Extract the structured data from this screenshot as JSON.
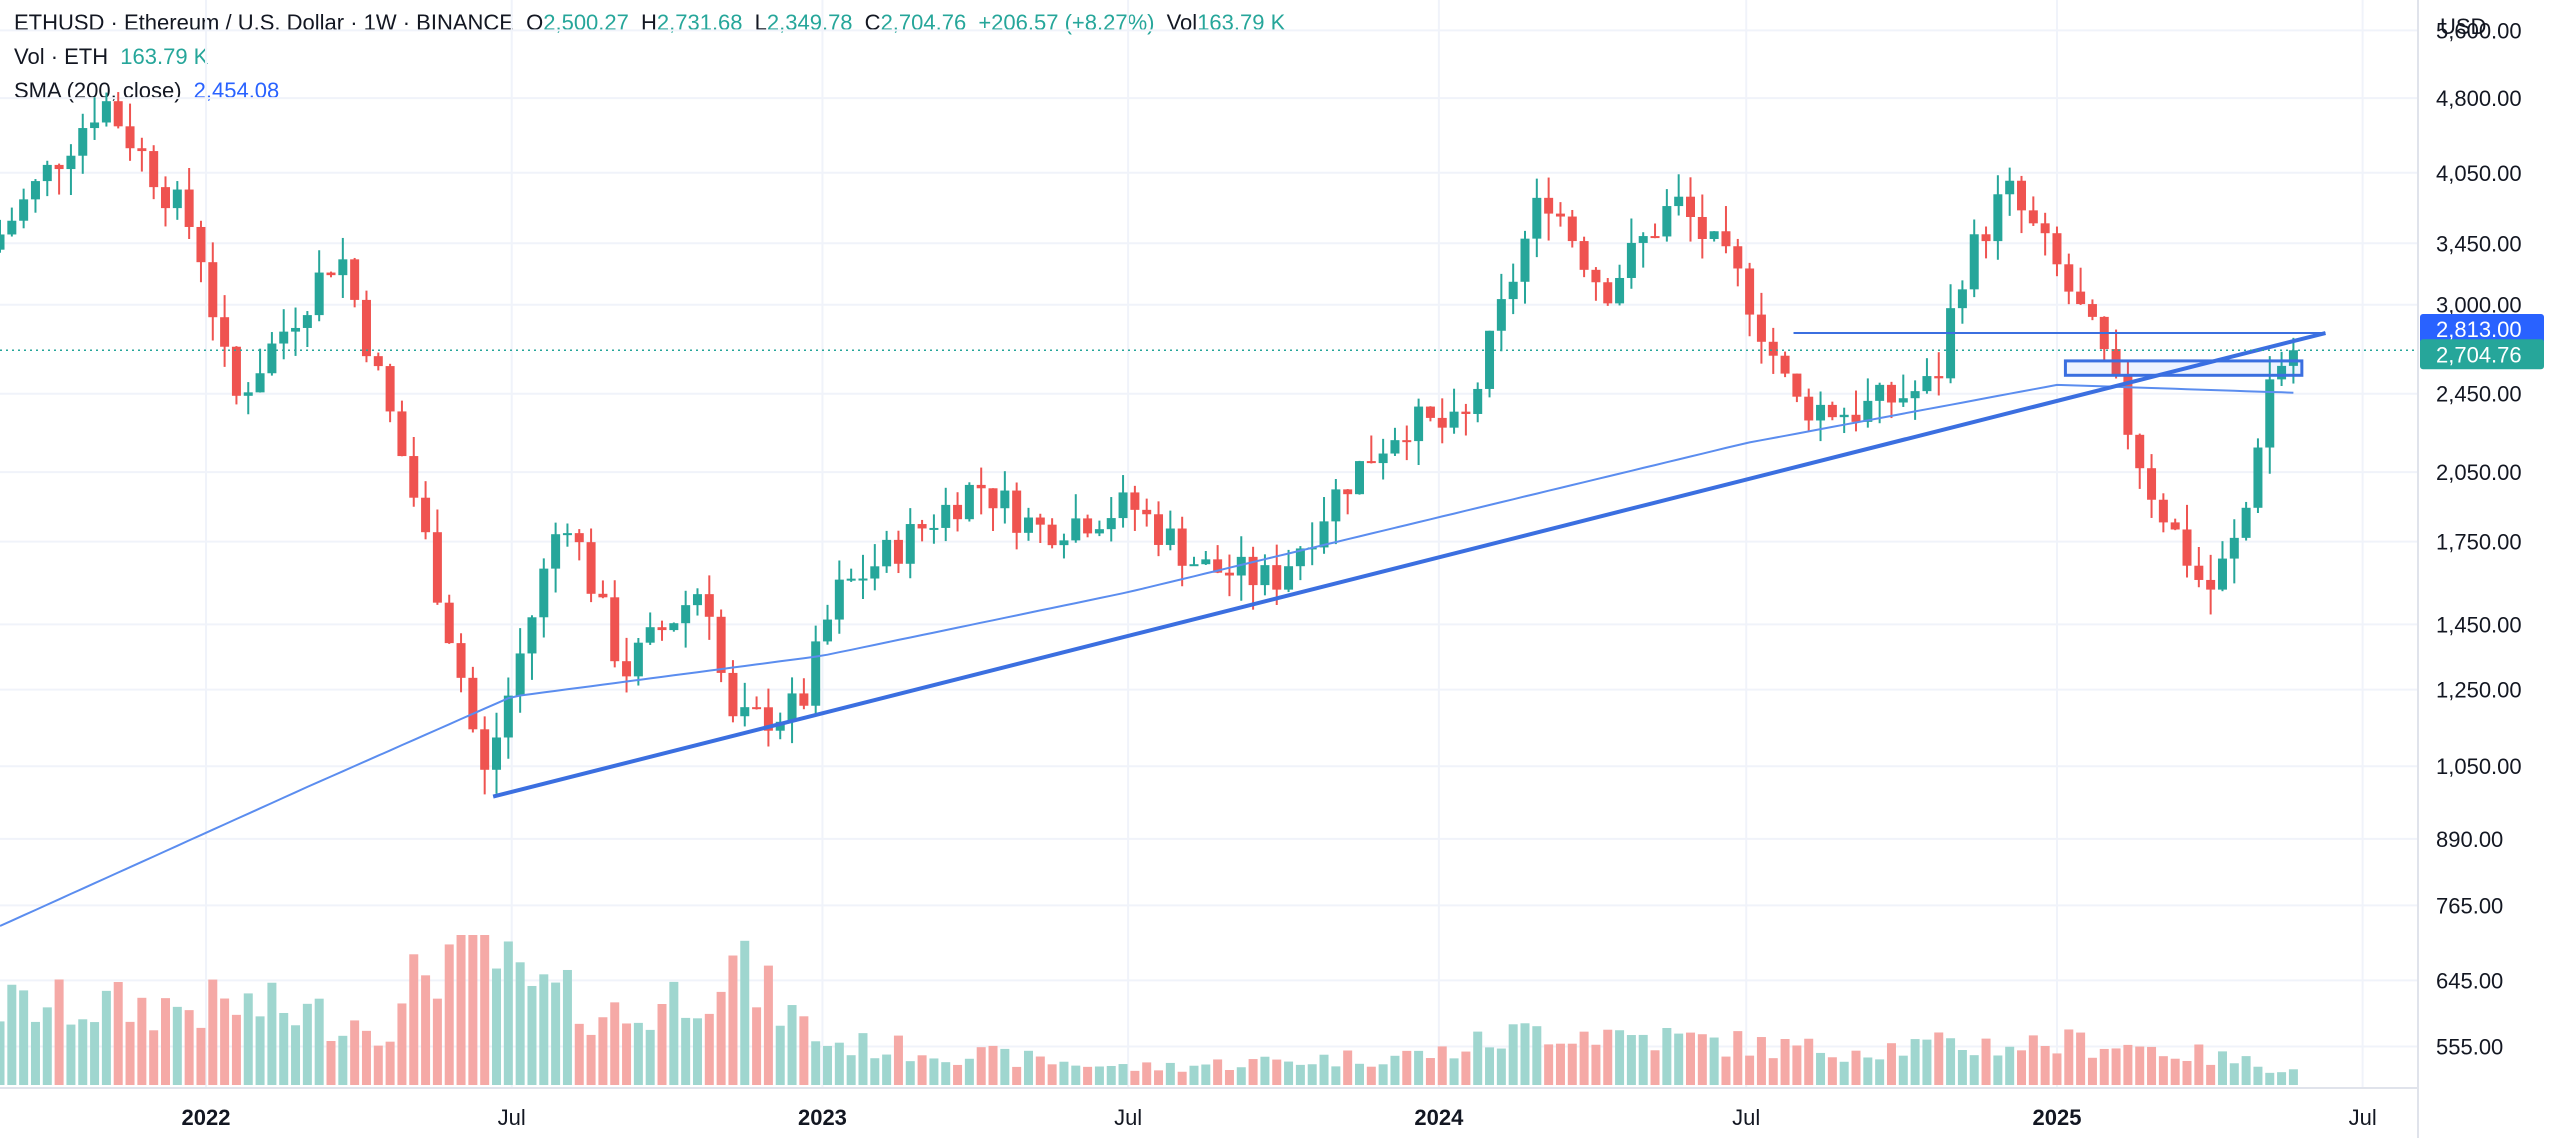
{
  "header": {
    "symbol": "ETHUSD · Ethereum / U.S. Dollar · 1W · BINANCE",
    "open_label": "O",
    "open": "2,500.27",
    "high_label": "H",
    "high": "2,731.68",
    "low_label": "L",
    "low": "2,349.78",
    "close_label": "C",
    "close": "2,704.76",
    "change": "+206.57 (+8.27%)",
    "vol_label": "Vol",
    "vol": "163.79 K",
    "vol_indicator": "Vol · ETH",
    "vol_indicator_value": "163.79 K",
    "sma_label": "SMA (200, close)",
    "sma_value": "2,454.08"
  },
  "axis": {
    "unit": "USD",
    "price_ticks": [
      "5,600.00",
      "4,800.00",
      "4,050.00",
      "3,450.00",
      "3,000.00",
      "2,450.00",
      "2,050.00",
      "1,750.00",
      "1,450.00",
      "1,250.00",
      "1,050.00",
      "890.00",
      "765.00",
      "645.00",
      "555.00"
    ],
    "time_ticks": [
      {
        "label": "2022",
        "bold": true,
        "date": "2022-01-01"
      },
      {
        "label": "Jul",
        "bold": false,
        "date": "2022-07-01"
      },
      {
        "label": "2023",
        "bold": true,
        "date": "2023-01-01"
      },
      {
        "label": "Jul",
        "bold": false,
        "date": "2023-07-01"
      },
      {
        "label": "2024",
        "bold": true,
        "date": "2024-01-01"
      },
      {
        "label": "Jul",
        "bold": false,
        "date": "2024-07-01"
      },
      {
        "label": "2025",
        "bold": true,
        "date": "2025-01-01"
      },
      {
        "label": "Jul",
        "bold": false,
        "date": "2025-07-01"
      }
    ],
    "price_labels": [
      {
        "value": "2,813.00",
        "color": "#2962ff"
      },
      {
        "value": "2,704.76",
        "color": "#26a69a"
      }
    ]
  },
  "colors": {
    "up": "#26a69a",
    "down": "#ef5350",
    "sma": "#5b8def",
    "trend": "#3b6fe0",
    "grid": "#f0f3fa"
  },
  "chart_data": {
    "type": "candlestick",
    "title": "ETHUSD · Ethereum / U.S. Dollar · 1W · BINANCE",
    "y_scale": "log",
    "ylim": [
      505,
      6000
    ],
    "x_range": [
      "2021-09-01",
      "2025-08-01"
    ],
    "price_anchors": [
      {
        "date": "2021-09-01",
        "price": 3400
      },
      {
        "date": "2021-11-08",
        "price": 4800
      },
      {
        "date": "2022-01-03",
        "price": 3500
      },
      {
        "date": "2022-01-24",
        "price": 2400
      },
      {
        "date": "2022-03-28",
        "price": 3400
      },
      {
        "date": "2022-05-09",
        "price": 2000
      },
      {
        "date": "2022-06-13",
        "price": 1200
      },
      {
        "date": "2022-06-20",
        "price": 1000
      },
      {
        "date": "2022-08-08",
        "price": 1900
      },
      {
        "date": "2022-09-12",
        "price": 1300
      },
      {
        "date": "2022-10-31",
        "price": 1600
      },
      {
        "date": "2022-11-14",
        "price": 1150
      },
      {
        "date": "2022-12-26",
        "price": 1200
      },
      {
        "date": "2023-01-16",
        "price": 1550
      },
      {
        "date": "2023-04-10",
        "price": 2000
      },
      {
        "date": "2023-05-15",
        "price": 1800
      },
      {
        "date": "2023-07-10",
        "price": 1900
      },
      {
        "date": "2023-08-21",
        "price": 1650
      },
      {
        "date": "2023-10-02",
        "price": 1600
      },
      {
        "date": "2023-11-13",
        "price": 2000
      },
      {
        "date": "2023-12-18",
        "price": 2300
      },
      {
        "date": "2024-01-22",
        "price": 2250
      },
      {
        "date": "2024-02-26",
        "price": 3400
      },
      {
        "date": "2024-03-11",
        "price": 3900
      },
      {
        "date": "2024-04-15",
        "price": 3100
      },
      {
        "date": "2024-05-27",
        "price": 3800
      },
      {
        "date": "2024-07-08",
        "price": 3100
      },
      {
        "date": "2024-08-05",
        "price": 2400
      },
      {
        "date": "2024-09-09",
        "price": 2350
      },
      {
        "date": "2024-10-28",
        "price": 2500
      },
      {
        "date": "2024-11-11",
        "price": 3200
      },
      {
        "date": "2024-12-09",
        "price": 3900
      },
      {
        "date": "2025-01-06",
        "price": 3300
      },
      {
        "date": "2025-02-03",
        "price": 2700
      },
      {
        "date": "2025-03-03",
        "price": 2000
      },
      {
        "date": "2025-04-07",
        "price": 1550
      },
      {
        "date": "2025-04-28",
        "price": 1800
      },
      {
        "date": "2025-05-12",
        "price": 2500
      },
      {
        "date": "2025-05-26",
        "price": 2705
      }
    ],
    "sma200_anchors": [
      {
        "date": "2021-09-01",
        "price": 730
      },
      {
        "date": "2022-03-01",
        "price": 1000
      },
      {
        "date": "2022-07-01",
        "price": 1230
      },
      {
        "date": "2023-01-01",
        "price": 1350
      },
      {
        "date": "2023-07-01",
        "price": 1560
      },
      {
        "date": "2024-01-01",
        "price": 1850
      },
      {
        "date": "2024-07-01",
        "price": 2190
      },
      {
        "date": "2025-01-01",
        "price": 2500
      },
      {
        "date": "2025-05-26",
        "price": 2454
      }
    ],
    "trendline": {
      "from": {
        "date": "2022-06-20",
        "price": 980
      },
      "to": {
        "date": "2025-06-09",
        "price": 2813
      }
    },
    "horizontal_line": {
      "from": "2024-07-29",
      "to": "2025-06-09",
      "price": 2813
    },
    "zone": {
      "from": "2025-01-06",
      "to": "2025-05-26",
      "low": 2555,
      "high": 2640
    },
    "volume_anchors": [
      {
        "date": "2021-09-01",
        "value": 0.55
      },
      {
        "date": "2022-01-24",
        "value": 0.55
      },
      {
        "date": "2022-04-25",
        "value": 0.42
      },
      {
        "date": "2022-05-09",
        "value": 0.85
      },
      {
        "date": "2022-06-13",
        "value": 1.0
      },
      {
        "date": "2022-07-04",
        "value": 0.7
      },
      {
        "date": "2022-09-12",
        "value": 0.45
      },
      {
        "date": "2022-11-07",
        "value": 0.85
      },
      {
        "date": "2023-01-02",
        "value": 0.3
      },
      {
        "date": "2023-07-03",
        "value": 0.12
      },
      {
        "date": "2024-01-01",
        "value": 0.22
      },
      {
        "date": "2024-03-04",
        "value": 0.4
      },
      {
        "date": "2024-08-05",
        "value": 0.25
      },
      {
        "date": "2024-11-11",
        "value": 0.28
      },
      {
        "date": "2025-02-03",
        "value": 0.3
      },
      {
        "date": "2025-05-26",
        "value": 0.1
      }
    ],
    "last_close": 2704.76
  }
}
